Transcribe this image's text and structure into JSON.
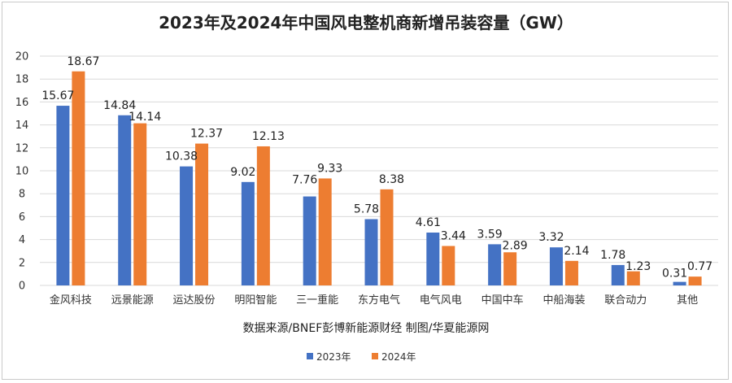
{
  "chart_data": {
    "type": "bar",
    "title": "2023年及2024年中国风电整机商新增吊装容量（GW）",
    "categories": [
      "金风科技",
      "远景能源",
      "运达股份",
      "明阳智能",
      "三一重能",
      "东方电气",
      "电气风电",
      "中国中车",
      "中船海装",
      "联合动力",
      "其他"
    ],
    "series": [
      {
        "name": "2023年",
        "color": "#4472C4",
        "values": [
          15.67,
          14.84,
          10.38,
          9.02,
          7.76,
          5.78,
          4.61,
          3.59,
          3.32,
          1.78,
          0.31
        ]
      },
      {
        "name": "2024年",
        "color": "#ED7D31",
        "values": [
          18.67,
          14.14,
          12.37,
          12.13,
          9.33,
          8.38,
          3.44,
          2.89,
          2.14,
          1.23,
          0.77
        ]
      }
    ],
    "ylim": [
      0,
      20
    ],
    "yticks": [
      0,
      2,
      4,
      6,
      8,
      10,
      12,
      14,
      16,
      18,
      20
    ],
    "grid": true,
    "legend_position": "bottom-center",
    "source_note": "数据来源/BNEF彭博新能源财经 制图/华夏能源网"
  }
}
